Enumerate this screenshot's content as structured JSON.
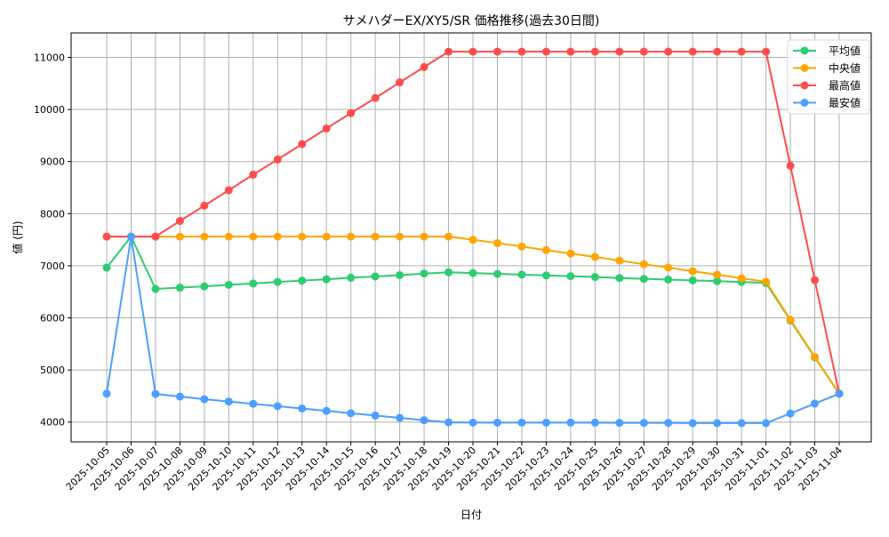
{
  "chart_data": {
    "type": "line",
    "title": "サメハダーEX/XY5/SR 価格推移(過去30日間)",
    "xlabel": "日付",
    "ylabel": "値 (円)",
    "ylim": [
      3620,
      11470
    ],
    "yticks": [
      4000,
      5000,
      6000,
      7000,
      8000,
      9000,
      10000,
      11000
    ],
    "grid": true,
    "legend_position": "upper right",
    "x": [
      "2025-10-05",
      "2025-10-06",
      "2025-10-07",
      "2025-10-08",
      "2025-10-09",
      "2025-10-10",
      "2025-10-11",
      "2025-10-12",
      "2025-10-13",
      "2025-10-14",
      "2025-10-15",
      "2025-10-16",
      "2025-10-17",
      "2025-10-18",
      "2025-10-19",
      "2025-10-20",
      "2025-10-21",
      "2025-10-22",
      "2025-10-23",
      "2025-10-24",
      "2025-10-25",
      "2025-10-26",
      "2025-10-27",
      "2025-10-28",
      "2025-10-29",
      "2025-10-30",
      "2025-10-31",
      "2025-11-01",
      "2025-11-02",
      "2025-11-03",
      "2025-11-04"
    ],
    "series": [
      {
        "name": "平均値",
        "color": "#2ecc71",
        "values": [
          6965,
          7560,
          6555,
          6580,
          6605,
          6635,
          6660,
          6690,
          6715,
          6740,
          6770,
          6795,
          6820,
          6850,
          6875,
          6860,
          6845,
          6830,
          6815,
          6800,
          6785,
          6765,
          6750,
          6735,
          6720,
          6705,
          6690,
          6670,
          5950,
          5240,
          4545
        ]
      },
      {
        "name": "中央値",
        "color": "#ffa500",
        "values": [
          7560,
          7560,
          7560,
          7560,
          7560,
          7560,
          7560,
          7560,
          7560,
          7560,
          7560,
          7560,
          7560,
          7560,
          7560,
          7500,
          7435,
          7370,
          7300,
          7235,
          7170,
          7100,
          7030,
          6965,
          6895,
          6830,
          6760,
          6695,
          5965,
          5250,
          4545
        ]
      },
      {
        "name": "最高値",
        "color": "#ff4d4d",
        "values": [
          7560,
          7560,
          7560,
          7860,
          8155,
          8450,
          8750,
          9040,
          9335,
          9635,
          9930,
          10220,
          10520,
          10815,
          11110,
          11110,
          11110,
          11110,
          11110,
          11110,
          11110,
          11110,
          11110,
          11110,
          11110,
          11110,
          11110,
          11110,
          8920,
          6725,
          4545
        ]
      },
      {
        "name": "最安値",
        "color": "#4d9fff",
        "values": [
          4545,
          7560,
          4540,
          4490,
          4440,
          4395,
          4350,
          4305,
          4260,
          4215,
          4170,
          4125,
          4080,
          4035,
          3995,
          3990,
          3990,
          3990,
          3990,
          3990,
          3990,
          3985,
          3985,
          3985,
          3980,
          3980,
          3980,
          3980,
          4165,
          4355,
          4545
        ]
      }
    ]
  }
}
